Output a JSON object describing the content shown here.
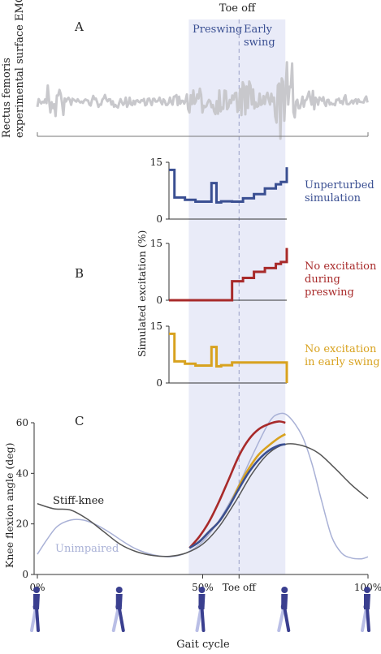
{
  "chart_data": [
    {
      "panel": "A",
      "type": "line",
      "ylabel_lines": [
        "Rectus femoris",
        "experimental surface EMG"
      ],
      "shaded_regions": [
        {
          "name": "Preswing",
          "x_start": 45.8,
          "x_end": 61
        },
        {
          "name": "Early swing",
          "name_lines": [
            "Early",
            "swing"
          ],
          "x_start": 61,
          "x_end": 75
        }
      ],
      "toe_off_label": "Toe off",
      "toe_off_x": 61,
      "color": "#c8c8cc"
    },
    {
      "panel": "B",
      "type": "line",
      "ylabel": "Simulated excitation (%)",
      "ylim": [
        0,
        15
      ],
      "yticks": [
        "0",
        "15"
      ],
      "series": [
        {
          "name": "Unperturbed simulation",
          "label_lines": [
            "Unperturbed",
            "simulation"
          ],
          "color": "#3a4f92",
          "x": [
            46,
            47.3,
            49.8,
            52.3,
            54.9,
            56.1,
            57.3,
            58.4,
            61,
            63.6,
            66.2,
            68.8,
            71.4,
            72.6,
            74
          ],
          "y": [
            13,
            5.7,
            5.1,
            4.6,
            4.6,
            9.5,
            4.4,
            4.7,
            4.6,
            5.5,
            6.6,
            8.1,
            9.2,
            9.8,
            13.7
          ]
        },
        {
          "name": "No excitation during preswing",
          "label_lines": [
            "No excitation",
            "during",
            "preswing"
          ],
          "color": "#a82a2a",
          "x": [
            46,
            61,
            63.6,
            66.2,
            68.8,
            71.4,
            72.6,
            74
          ],
          "y": [
            0,
            5,
            5.9,
            7.5,
            8.5,
            9.6,
            10.1,
            13.8
          ]
        },
        {
          "name": "No excitation in early swing",
          "label_lines": [
            "No excitation",
            "in early swing"
          ],
          "color": "#d8a21f",
          "x": [
            46,
            47.3,
            49.8,
            52.3,
            54.9,
            56.1,
            57.3,
            58.4,
            61,
            74
          ],
          "y": [
            13,
            5.7,
            5.1,
            4.6,
            4.6,
            9.5,
            4.4,
            4.7,
            5.4,
            0
          ]
        }
      ]
    },
    {
      "panel": "C",
      "type": "line",
      "xlabel": "Gait cycle",
      "ylabel": "Knee flexion angle (deg)",
      "xlim": [
        0,
        100
      ],
      "ylim": [
        0,
        60
      ],
      "yticks": [
        "0",
        "20",
        "40",
        "60"
      ],
      "xticks": [
        {
          "x": 0,
          "label": "0%"
        },
        {
          "x": 50,
          "label": "50%"
        },
        {
          "x": 61,
          "label": "Toe off"
        },
        {
          "x": 100,
          "label": "100%"
        }
      ],
      "series": [
        {
          "name": "Stiff-knee",
          "color": "#555555",
          "x": [
            0,
            5,
            10,
            15,
            20,
            25,
            30,
            35,
            40,
            45,
            50,
            55,
            60,
            65,
            70,
            75,
            80,
            85,
            90,
            95,
            100
          ],
          "y": [
            28,
            26,
            25.5,
            22,
            17,
            12,
            9,
            7.5,
            7.2,
            8.5,
            12,
            19,
            29,
            40,
            48,
            51.5,
            51,
            48,
            42,
            35.5,
            30
          ]
        },
        {
          "name": "Unimpaired",
          "color": "#a9b1d6",
          "x": [
            0,
            3,
            6,
            10,
            14,
            18,
            22,
            26,
            30,
            35,
            40,
            45,
            50,
            55,
            60,
            65,
            70,
            73,
            76,
            80,
            83,
            86,
            89,
            92,
            95,
            98,
            100
          ],
          "y": [
            8,
            14,
            19,
            21.5,
            21.5,
            19.5,
            16.5,
            13,
            10,
            7.8,
            7,
            8.5,
            13,
            21.5,
            33,
            47,
            60,
            63.5,
            62.5,
            55,
            44,
            29,
            15,
            8.5,
            6.5,
            6.2,
            7
          ]
        },
        {
          "name": "Unperturbed simulation",
          "color": "#3a4f92",
          "x": [
            46,
            49,
            52,
            55,
            58,
            61,
            64,
            67,
            70,
            73,
            75
          ],
          "y": [
            10.5,
            13,
            17,
            21,
            27,
            34,
            40.5,
            45.5,
            49,
            51,
            51.5
          ]
        },
        {
          "name": "No excitation during preswing",
          "color": "#a82a2a",
          "x": [
            46,
            49,
            52,
            55,
            58,
            61,
            64,
            67,
            70,
            73,
            75
          ],
          "y": [
            10.5,
            15,
            21,
            29,
            38,
            47,
            53.5,
            57.5,
            59.5,
            60.5,
            60
          ]
        },
        {
          "name": "No excitation in early swing",
          "color": "#d8a21f",
          "x": [
            46,
            49,
            52,
            55,
            58,
            61,
            64,
            67,
            70,
            73,
            75
          ],
          "y": [
            10.5,
            13,
            17,
            21,
            27,
            35,
            42,
            47.5,
            51,
            54,
            55.5
          ]
        }
      ],
      "series_labels": [
        {
          "text": "Stiff-knee",
          "color": "#333333"
        },
        {
          "text": "Unimpaired",
          "color": "#a9b1d6"
        }
      ]
    }
  ],
  "panel_letters": [
    "A",
    "B",
    "C"
  ],
  "walker_icon": "walking-person-icon",
  "walker_color": "#3a3f8f",
  "walker_positions_pct": [
    0,
    25,
    50,
    75,
    100
  ]
}
